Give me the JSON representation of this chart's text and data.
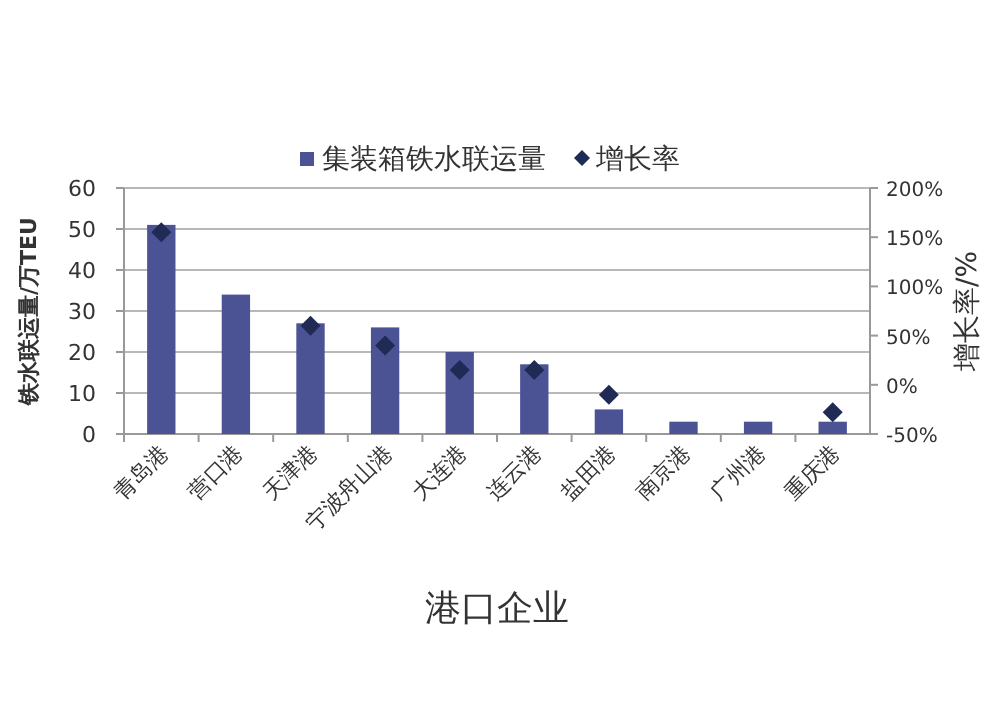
{
  "chart_data": {
    "type": "bar",
    "xlabel": "港口企业",
    "ylabel": "铁水联运量/万TEU",
    "y2label": "增长率/%",
    "categories": [
      "青岛港",
      "营口港",
      "天津港",
      "宁波舟山港",
      "大连港",
      "连云港",
      "盐田港",
      "南京港",
      "广州港",
      "重庆港"
    ],
    "series": [
      {
        "name": "集装箱铁水联运量",
        "color": "#4b5394",
        "values": [
          51,
          34,
          27,
          26,
          20,
          17,
          6,
          3,
          3,
          3
        ]
      },
      {
        "name": "增长率",
        "type": "scatter",
        "axis": "y2",
        "marker": "diamond",
        "color": "#1f2a55",
        "values": [
          155,
          null,
          60,
          40,
          15,
          15,
          -10,
          null,
          null,
          -28
        ]
      }
    ],
    "ylim": [
      0,
      60
    ],
    "yticks": [
      0,
      10,
      20,
      30,
      40,
      50,
      60
    ],
    "y2lim": [
      -50,
      200
    ],
    "y2ticks": [
      {
        "value": -50,
        "label": "-50%"
      },
      {
        "value": 0,
        "label": "0%"
      },
      {
        "value": 50,
        "label": "50%"
      },
      {
        "value": 100,
        "label": "100%"
      },
      {
        "value": 150,
        "label": "150%"
      },
      {
        "value": 200,
        "label": "200%"
      }
    ],
    "grid": "y",
    "legend": "top"
  }
}
